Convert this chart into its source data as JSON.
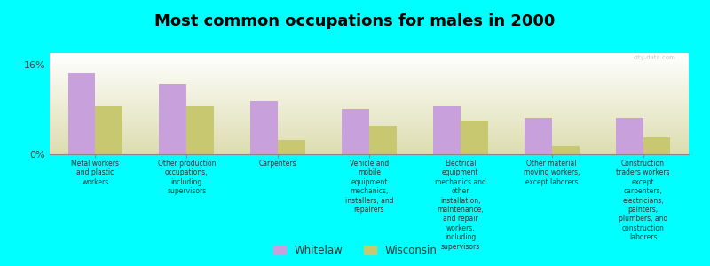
{
  "title": "Most common occupations for males in 2000",
  "background_color": "#00FFFF",
  "plot_bg_top": "#FFFFFF",
  "plot_bg_bottom": "#DDDDB0",
  "categories": [
    "Metal workers\nand plastic\nworkers",
    "Other production\noccupations,\nincluding\nsupervisors",
    "Carpenters",
    "Vehicle and\nmobile\nequipment\nmechanics,\ninstallers, and\nrepairers",
    "Electrical\nequipment\nmechanics and\nother\ninstallation,\nmaintenance,\nand repair\nworkers,\nincluding\nsupervisors",
    "Other material\nmoving workers,\nexcept laborers",
    "Construction\ntraders workers\nexcept\ncarpenters,\nelectricians,\npainters,\nplumbers, and\nconstruction\nlaborers"
  ],
  "whitelaw_values": [
    14.5,
    12.5,
    9.5,
    8.0,
    8.5,
    6.5,
    6.5
  ],
  "wisconsin_values": [
    8.5,
    8.5,
    2.5,
    5.0,
    6.0,
    1.5,
    3.0
  ],
  "whitelaw_color": "#C8A0DC",
  "wisconsin_color": "#C8C870",
  "ylim": [
    0,
    18
  ],
  "yticks": [
    0,
    16
  ],
  "ytick_labels": [
    "0%",
    "16%"
  ],
  "bar_width": 0.3,
  "title_fontsize": 13,
  "legend_labels": [
    "Whitelaw",
    "Wisconsin"
  ],
  "watermark": "city-data.com"
}
